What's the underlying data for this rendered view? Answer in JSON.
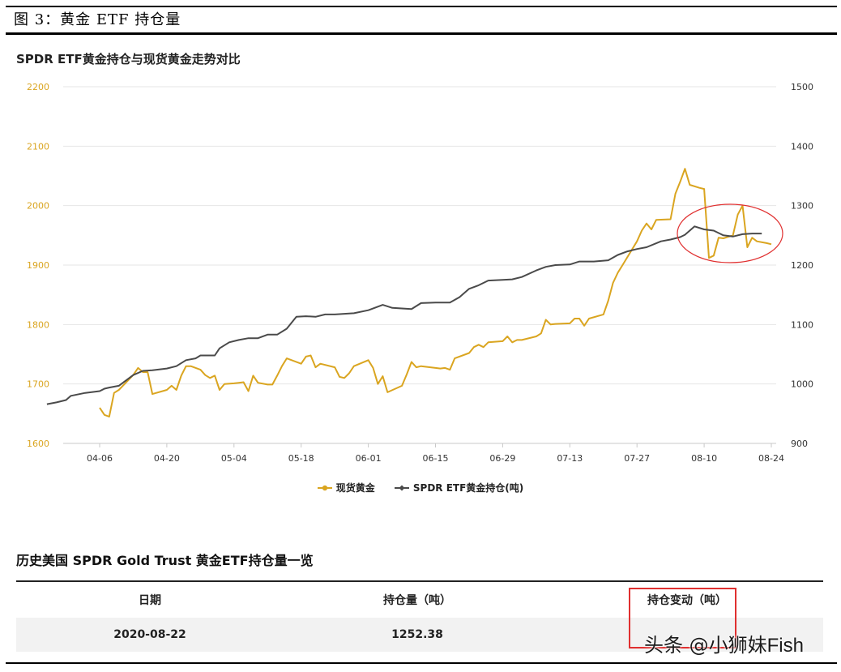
{
  "figure_caption": "图 3：黄金 ETF 持仓量",
  "chart_data": {
    "type": "line",
    "title": "SPDR ETF黄金持仓与现货黄金走势对比",
    "x_ticks": [
      "04-06",
      "04-20",
      "05-04",
      "05-18",
      "06-01",
      "06-15",
      "06-29",
      "07-13",
      "07-27",
      "08-10",
      "08-24"
    ],
    "left_axis": {
      "ticks": [
        "1600",
        "1700",
        "1800",
        "1900",
        "2000",
        "2100",
        "2200"
      ],
      "min": 1600,
      "max": 2200
    },
    "right_axis": {
      "ticks": [
        "900",
        "1000",
        "1100",
        "1200",
        "1300",
        "1400",
        "1500"
      ],
      "min": 900,
      "max": 1500
    },
    "series": [
      {
        "name": "现货黄金",
        "axis": "left",
        "color": "#DAA520",
        "points": [
          [
            "2020-04-06",
            1660
          ],
          [
            "2020-04-07",
            1648
          ],
          [
            "2020-04-08",
            1645
          ],
          [
            "2020-04-09",
            1685
          ],
          [
            "2020-04-10",
            1690
          ],
          [
            "2020-04-13",
            1715
          ],
          [
            "2020-04-14",
            1727
          ],
          [
            "2020-04-15",
            1720
          ],
          [
            "2020-04-16",
            1720
          ],
          [
            "2020-04-17",
            1683
          ],
          [
            "2020-04-20",
            1690
          ],
          [
            "2020-04-21",
            1697
          ],
          [
            "2020-04-22",
            1690
          ],
          [
            "2020-04-23",
            1714
          ],
          [
            "2020-04-24",
            1730
          ],
          [
            "2020-04-25",
            1730
          ],
          [
            "2020-04-27",
            1724
          ],
          [
            "2020-04-28",
            1715
          ],
          [
            "2020-04-29",
            1710
          ],
          [
            "2020-04-30",
            1714
          ],
          [
            "2020-05-01",
            1690
          ],
          [
            "2020-05-02",
            1700
          ],
          [
            "2020-05-04",
            1701
          ],
          [
            "2020-05-05",
            1702
          ],
          [
            "2020-05-06",
            1703
          ],
          [
            "2020-05-07",
            1688
          ],
          [
            "2020-05-08",
            1714
          ],
          [
            "2020-05-09",
            1702
          ],
          [
            "2020-05-11",
            1699
          ],
          [
            "2020-05-12",
            1699
          ],
          [
            "2020-05-13",
            1714
          ],
          [
            "2020-05-14",
            1730
          ],
          [
            "2020-05-15",
            1743
          ],
          [
            "2020-05-18",
            1734
          ],
          [
            "2020-05-19",
            1746
          ],
          [
            "2020-05-20",
            1748
          ],
          [
            "2020-05-21",
            1728
          ],
          [
            "2020-05-22",
            1734
          ],
          [
            "2020-05-25",
            1728
          ],
          [
            "2020-05-26",
            1712
          ],
          [
            "2020-05-27",
            1710
          ],
          [
            "2020-05-28",
            1718
          ],
          [
            "2020-05-29",
            1730
          ],
          [
            "2020-06-01",
            1740
          ],
          [
            "2020-06-02",
            1727
          ],
          [
            "2020-06-03",
            1700
          ],
          [
            "2020-06-04",
            1713
          ],
          [
            "2020-06-05",
            1686
          ],
          [
            "2020-06-08",
            1697
          ],
          [
            "2020-06-09",
            1716
          ],
          [
            "2020-06-10",
            1737
          ],
          [
            "2020-06-11",
            1728
          ],
          [
            "2020-06-12",
            1730
          ],
          [
            "2020-06-15",
            1727
          ],
          [
            "2020-06-16",
            1726
          ],
          [
            "2020-06-17",
            1727
          ],
          [
            "2020-06-18",
            1724
          ],
          [
            "2020-06-19",
            1743
          ],
          [
            "2020-06-22",
            1752
          ],
          [
            "2020-06-23",
            1762
          ],
          [
            "2020-06-24",
            1766
          ],
          [
            "2020-06-25",
            1762
          ],
          [
            "2020-06-26",
            1770
          ],
          [
            "2020-06-29",
            1772
          ],
          [
            "2020-06-30",
            1780
          ],
          [
            "2020-07-01",
            1770
          ],
          [
            "2020-07-02",
            1774
          ],
          [
            "2020-07-03",
            1774
          ],
          [
            "2020-07-06",
            1780
          ],
          [
            "2020-07-07",
            1785
          ],
          [
            "2020-07-08",
            1808
          ],
          [
            "2020-07-09",
            1800
          ],
          [
            "2020-07-10",
            1801
          ],
          [
            "2020-07-13",
            1802
          ],
          [
            "2020-07-14",
            1810
          ],
          [
            "2020-07-15",
            1810
          ],
          [
            "2020-07-16",
            1798
          ],
          [
            "2020-07-17",
            1810
          ],
          [
            "2020-07-20",
            1817
          ],
          [
            "2020-07-21",
            1840
          ],
          [
            "2020-07-22",
            1870
          ],
          [
            "2020-07-23",
            1887
          ],
          [
            "2020-07-24",
            1900
          ],
          [
            "2020-07-27",
            1940
          ],
          [
            "2020-07-28",
            1958
          ],
          [
            "2020-07-29",
            1970
          ],
          [
            "2020-07-30",
            1960
          ],
          [
            "2020-07-31",
            1976
          ],
          [
            "2020-08-03",
            1977
          ],
          [
            "2020-08-04",
            2020
          ],
          [
            "2020-08-05",
            2040
          ],
          [
            "2020-08-06",
            2062
          ],
          [
            "2020-08-07",
            2035
          ],
          [
            "2020-08-09",
            2030
          ],
          [
            "2020-08-10",
            2028
          ],
          [
            "2020-08-11",
            1912
          ],
          [
            "2020-08-12",
            1916
          ],
          [
            "2020-08-13",
            1946
          ],
          [
            "2020-08-14",
            1945
          ],
          [
            "2020-08-16",
            1950
          ],
          [
            "2020-08-17",
            1985
          ],
          [
            "2020-08-18",
            2000
          ],
          [
            "2020-08-19",
            1930
          ],
          [
            "2020-08-20",
            1946
          ],
          [
            "2020-08-21",
            1940
          ],
          [
            "2020-08-23",
            1937
          ],
          [
            "2020-08-24",
            1935
          ]
        ]
      },
      {
        "name": "SPDR ETF黄金持仓(吨)",
        "axis": "right",
        "color": "#4A4A4A",
        "points": [
          [
            "2020-03-26",
            966
          ],
          [
            "2020-03-28",
            969
          ],
          [
            "2020-03-30",
            973
          ],
          [
            "2020-03-31",
            980
          ],
          [
            "2020-04-03",
            985
          ],
          [
            "2020-04-06",
            988
          ],
          [
            "2020-04-07",
            992
          ],
          [
            "2020-04-08",
            994
          ],
          [
            "2020-04-10",
            997
          ],
          [
            "2020-04-13",
            1015
          ],
          [
            "2020-04-15",
            1022
          ],
          [
            "2020-04-17",
            1023
          ],
          [
            "2020-04-20",
            1026
          ],
          [
            "2020-04-22",
            1030
          ],
          [
            "2020-04-24",
            1040
          ],
          [
            "2020-04-26",
            1043
          ],
          [
            "2020-04-27",
            1048
          ],
          [
            "2020-04-28",
            1048
          ],
          [
            "2020-04-30",
            1048
          ],
          [
            "2020-05-01",
            1060
          ],
          [
            "2020-05-03",
            1070
          ],
          [
            "2020-05-05",
            1074
          ],
          [
            "2020-05-07",
            1077
          ],
          [
            "2020-05-09",
            1077
          ],
          [
            "2020-05-11",
            1083
          ],
          [
            "2020-05-13",
            1083
          ],
          [
            "2020-05-15",
            1093
          ],
          [
            "2020-05-17",
            1113
          ],
          [
            "2020-05-19",
            1114
          ],
          [
            "2020-05-21",
            1113
          ],
          [
            "2020-05-23",
            1117
          ],
          [
            "2020-05-25",
            1117
          ],
          [
            "2020-05-27",
            1118
          ],
          [
            "2020-05-29",
            1119
          ],
          [
            "2020-06-01",
            1124
          ],
          [
            "2020-06-03",
            1130
          ],
          [
            "2020-06-04",
            1133
          ],
          [
            "2020-06-06",
            1128
          ],
          [
            "2020-06-10",
            1126
          ],
          [
            "2020-06-12",
            1136
          ],
          [
            "2020-06-15",
            1137
          ],
          [
            "2020-06-18",
            1137
          ],
          [
            "2020-06-20",
            1146
          ],
          [
            "2020-06-22",
            1160
          ],
          [
            "2020-06-24",
            1166
          ],
          [
            "2020-06-26",
            1174
          ],
          [
            "2020-06-29",
            1175
          ],
          [
            "2020-07-01",
            1176
          ],
          [
            "2020-07-03",
            1180
          ],
          [
            "2020-07-06",
            1191
          ],
          [
            "2020-07-08",
            1197
          ],
          [
            "2020-07-10",
            1200
          ],
          [
            "2020-07-13",
            1201
          ],
          [
            "2020-07-15",
            1206
          ],
          [
            "2020-07-18",
            1206
          ],
          [
            "2020-07-21",
            1208
          ],
          [
            "2020-07-23",
            1217
          ],
          [
            "2020-07-25",
            1223
          ],
          [
            "2020-07-27",
            1227
          ],
          [
            "2020-07-29",
            1230
          ],
          [
            "2020-08-01",
            1240
          ],
          [
            "2020-08-03",
            1243
          ],
          [
            "2020-08-05",
            1247
          ],
          [
            "2020-08-06",
            1251
          ],
          [
            "2020-08-08",
            1265
          ],
          [
            "2020-08-10",
            1260
          ],
          [
            "2020-08-12",
            1258
          ],
          [
            "2020-08-14",
            1250
          ],
          [
            "2020-08-16",
            1248
          ],
          [
            "2020-08-18",
            1252
          ],
          [
            "2020-08-20",
            1253
          ],
          [
            "2020-08-22",
            1253
          ]
        ]
      }
    ]
  },
  "table": {
    "title": "历史美国 SPDR Gold Trust 黄金ETF持仓量一览",
    "headers": [
      "日期",
      "持仓量（吨）",
      "持仓变动（吨）"
    ],
    "rows": [
      [
        "2020-08-22",
        "1252.38",
        ""
      ]
    ]
  },
  "watermark": {
    "prefix": "头条 @",
    "handle": "小狮妹Fish"
  },
  "colors": {
    "gold": "#DAA520",
    "holdings": "#4A4A4A",
    "axis_label": "#DAA520",
    "annotation": "#E03030"
  }
}
